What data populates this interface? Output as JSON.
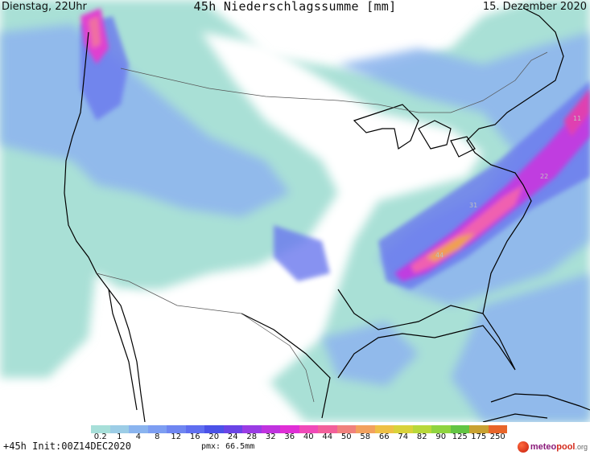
{
  "header": {
    "left": "Dienstag, 22Uhr",
    "title": "45h Niederschlagssumme [mm]",
    "right": "15. Dezember 2020"
  },
  "map_labels": [
    "44",
    "31",
    "22",
    "11"
  ],
  "legend": {
    "ticks": [
      "0.2",
      "1",
      "4",
      "8",
      "12",
      "16",
      "20",
      "24",
      "28",
      "32",
      "36",
      "40",
      "44",
      "50",
      "58",
      "66",
      "74",
      "82",
      "90",
      "125",
      "175",
      "250"
    ],
    "colors": [
      "#a7dfd9",
      "#9ccde6",
      "#8ab4ef",
      "#7d9ef2",
      "#6f86f1",
      "#5f6ef0",
      "#4b52e8",
      "#6a44e6",
      "#9a3ce4",
      "#c033df",
      "#e02fd6",
      "#f04ab8",
      "#f2609a",
      "#f0817d",
      "#f2a15e",
      "#eec045",
      "#d9d23a",
      "#b8d83a",
      "#8fd43f",
      "#62c543",
      "#c9a232",
      "#e8652a"
    ]
  },
  "footer": {
    "run": "+45h Init:00Z14DEC2020",
    "pmx": "pmx: 66.5mm"
  },
  "logo": {
    "part1": "meteo",
    "part2": "pool",
    "part3": ".org"
  },
  "colors": {
    "base": "#a9e0d6",
    "light_blue": "#9ec3ec",
    "blue": "#7f9ff0",
    "purple": "#5a5ae8",
    "magenta": "#e030d8",
    "orange": "#f0a050"
  }
}
